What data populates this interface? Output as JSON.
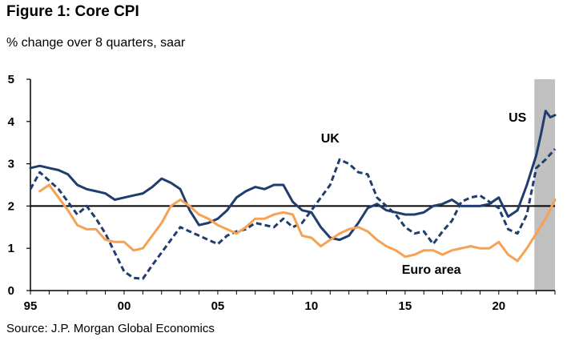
{
  "chart_data": {
    "type": "line",
    "title": "Figure 1: Core CPI",
    "subtitle": "% change over 8 quarters, saar",
    "source": "Source: J.P. Morgan Global Economics",
    "xlim": [
      1995,
      2023
    ],
    "ylim": [
      0,
      5
    ],
    "xticks": [
      1995,
      2000,
      2005,
      2010,
      2015,
      2020
    ],
    "xtick_labels": [
      "95",
      "00",
      "05",
      "10",
      "15",
      "20"
    ],
    "yticks": [
      0,
      1,
      2,
      3,
      4,
      5
    ],
    "reference_line": 2,
    "shaded_region": [
      2021.9,
      2023
    ],
    "series": [
      {
        "name": "US",
        "style": "solid",
        "color": "#1f3d6e",
        "label_at": [
          2021,
          4.0
        ],
        "x": [
          1995.0,
          1995.5,
          1996.0,
          1996.5,
          1997.0,
          1997.5,
          1998.0,
          1998.5,
          1999.0,
          1999.5,
          2000.0,
          2000.5,
          2001.0,
          2001.5,
          2002.0,
          2002.5,
          2003.0,
          2003.5,
          2004.0,
          2004.5,
          2005.0,
          2005.5,
          2006.0,
          2006.5,
          2007.0,
          2007.5,
          2008.0,
          2008.5,
          2009.0,
          2009.5,
          2010.0,
          2010.5,
          2011.0,
          2011.5,
          2012.0,
          2012.5,
          2013.0,
          2013.5,
          2014.0,
          2014.5,
          2015.0,
          2015.5,
          2016.0,
          2016.5,
          2017.0,
          2017.5,
          2018.0,
          2018.5,
          2019.0,
          2019.5,
          2020.0,
          2020.5,
          2021.0,
          2021.5,
          2022.0,
          2022.25,
          2022.5,
          2022.75,
          2023.0
        ],
        "values": [
          2.9,
          2.95,
          2.9,
          2.85,
          2.75,
          2.5,
          2.4,
          2.35,
          2.3,
          2.15,
          2.2,
          2.25,
          2.3,
          2.45,
          2.65,
          2.55,
          2.4,
          1.9,
          1.55,
          1.6,
          1.7,
          1.9,
          2.2,
          2.35,
          2.45,
          2.4,
          2.5,
          2.5,
          2.1,
          1.9,
          1.85,
          1.5,
          1.25,
          1.2,
          1.3,
          1.6,
          1.95,
          2.05,
          1.9,
          1.85,
          1.8,
          1.8,
          1.85,
          2.0,
          2.05,
          2.15,
          2.0,
          2.0,
          2.0,
          2.05,
          2.2,
          1.75,
          1.9,
          2.5,
          3.2,
          3.7,
          4.25,
          4.1,
          4.15
        ]
      },
      {
        "name": "UK",
        "style": "dashed",
        "color": "#1f3d6e",
        "label_at": [
          2011,
          3.5
        ],
        "x": [
          1995.0,
          1995.5,
          1996.0,
          1996.5,
          1997.0,
          1997.5,
          1998.0,
          1998.5,
          1999.0,
          1999.5,
          2000.0,
          2000.5,
          2001.0,
          2001.5,
          2002.0,
          2002.5,
          2003.0,
          2003.5,
          2004.0,
          2004.5,
          2005.0,
          2005.5,
          2006.0,
          2006.5,
          2007.0,
          2007.5,
          2008.0,
          2008.5,
          2009.0,
          2009.5,
          2010.0,
          2010.5,
          2011.0,
          2011.5,
          2012.0,
          2012.5,
          2013.0,
          2013.5,
          2014.0,
          2014.5,
          2015.0,
          2015.5,
          2016.0,
          2016.5,
          2017.0,
          2017.5,
          2018.0,
          2018.5,
          2019.0,
          2019.5,
          2020.0,
          2020.5,
          2021.0,
          2021.5,
          2022.0,
          2022.5,
          2023.0
        ],
        "values": [
          2.4,
          2.8,
          2.6,
          2.4,
          2.1,
          1.8,
          2.0,
          1.7,
          1.35,
          0.9,
          0.45,
          0.3,
          0.28,
          0.6,
          0.9,
          1.2,
          1.5,
          1.4,
          1.3,
          1.2,
          1.1,
          1.3,
          1.4,
          1.45,
          1.6,
          1.55,
          1.5,
          1.7,
          1.5,
          1.6,
          1.9,
          2.2,
          2.5,
          3.1,
          3.0,
          2.8,
          2.75,
          2.2,
          2.0,
          1.8,
          1.5,
          1.35,
          1.4,
          1.1,
          1.4,
          1.65,
          2.1,
          2.2,
          2.25,
          2.1,
          1.95,
          1.45,
          1.35,
          1.8,
          2.9,
          3.1,
          3.35
        ]
      },
      {
        "name": "Euro area",
        "style": "solid",
        "color": "#f5a254",
        "label_at": [
          2016.4,
          0.4
        ],
        "x": [
          1995.5,
          1996.0,
          1996.5,
          1997.0,
          1997.5,
          1998.0,
          1998.5,
          1999.0,
          1999.5,
          2000.0,
          2000.5,
          2001.0,
          2001.5,
          2002.0,
          2002.5,
          2003.0,
          2003.5,
          2004.0,
          2004.5,
          2005.0,
          2005.5,
          2006.0,
          2006.5,
          2007.0,
          2007.5,
          2008.0,
          2008.5,
          2009.0,
          2009.5,
          2010.0,
          2010.5,
          2011.0,
          2011.5,
          2012.0,
          2012.5,
          2013.0,
          2013.5,
          2014.0,
          2014.5,
          2015.0,
          2015.5,
          2016.0,
          2016.5,
          2017.0,
          2017.5,
          2018.0,
          2018.5,
          2019.0,
          2019.5,
          2020.0,
          2020.5,
          2021.0,
          2021.5,
          2022.0,
          2022.5,
          2023.0
        ],
        "values": [
          2.35,
          2.5,
          2.2,
          1.9,
          1.55,
          1.45,
          1.45,
          1.2,
          1.15,
          1.15,
          0.95,
          1.0,
          1.3,
          1.6,
          2.0,
          2.15,
          2.0,
          1.8,
          1.7,
          1.55,
          1.45,
          1.35,
          1.5,
          1.7,
          1.7,
          1.8,
          1.85,
          1.8,
          1.3,
          1.25,
          1.05,
          1.2,
          1.35,
          1.45,
          1.5,
          1.4,
          1.2,
          1.05,
          0.95,
          0.8,
          0.85,
          0.95,
          0.95,
          0.85,
          0.95,
          1.0,
          1.05,
          1.0,
          1.0,
          1.15,
          0.85,
          0.7,
          1.0,
          1.35,
          1.7,
          2.15
        ]
      }
    ]
  }
}
